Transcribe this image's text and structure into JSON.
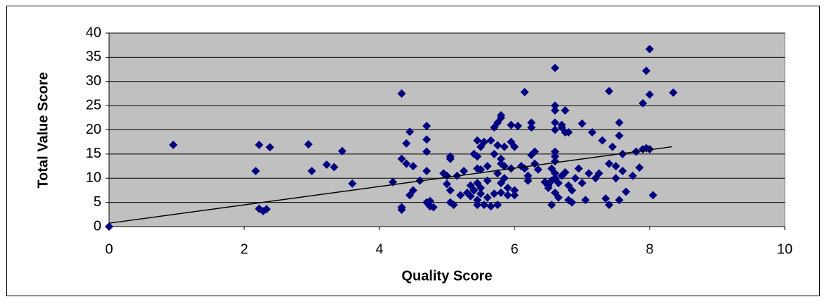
{
  "chart_data": {
    "type": "scatter",
    "x_label": "Quality Score",
    "y_label": "Total Value Score",
    "xlim": [
      0,
      10
    ],
    "xticks": [
      0,
      2,
      4,
      6,
      8,
      10
    ],
    "ylim": [
      0,
      40
    ],
    "yticks": [
      0,
      5,
      10,
      15,
      20,
      25,
      30,
      35,
      40
    ],
    "grid": true,
    "marker": "diamond",
    "color": "#000080",
    "plot_background": "#c0c0c0",
    "x": [
      0,
      0.95,
      2.17,
      2.22,
      2.22,
      2.28,
      2.33,
      2.38,
      2.95,
      3.0,
      3.22,
      3.33,
      3.45,
      3.6,
      4.2,
      4.33,
      4.33,
      4.33,
      4.33,
      4.4,
      4.4,
      4.45,
      4.45,
      4.5,
      4.5,
      4.6,
      4.7,
      4.7,
      4.7,
      4.7,
      4.7,
      4.75,
      4.75,
      4.8,
      4.95,
      5.0,
      5.0,
      5.05,
      5.05,
      5.05,
      5.05,
      5.1,
      5.15,
      5.2,
      5.25,
      5.3,
      5.35,
      5.35,
      5.4,
      5.4,
      5.45,
      5.45,
      5.45,
      5.45,
      5.45,
      5.45,
      5.5,
      5.5,
      5.5,
      5.5,
      5.55,
      5.55,
      5.6,
      5.6,
      5.6,
      5.65,
      5.65,
      5.7,
      5.7,
      5.7,
      5.75,
      5.75,
      5.75,
      5.75,
      5.8,
      5.8,
      5.8,
      5.8,
      5.8,
      5.8,
      5.85,
      5.85,
      5.85,
      5.9,
      5.9,
      5.95,
      5.95,
      5.95,
      6.0,
      6.0,
      6.0,
      6.05,
      6.1,
      6.15,
      6.15,
      6.2,
      6.2,
      6.25,
      6.25,
      6.25,
      6.3,
      6.3,
      6.35,
      6.45,
      6.5,
      6.5,
      6.55,
      6.55,
      6.55,
      6.6,
      6.6,
      6.6,
      6.6,
      6.6,
      6.6,
      6.6,
      6.6,
      6.6,
      6.6,
      6.6,
      6.65,
      6.65,
      6.7,
      6.7,
      6.7,
      6.75,
      6.75,
      6.75,
      6.8,
      6.8,
      6.8,
      6.85,
      6.85,
      6.9,
      6.95,
      7.0,
      7.0,
      7.05,
      7.1,
      7.15,
      7.2,
      7.25,
      7.3,
      7.35,
      7.4,
      7.4,
      7.4,
      7.45,
      7.5,
      7.5,
      7.55,
      7.55,
      7.55,
      7.6,
      7.6,
      7.65,
      7.75,
      7.8,
      7.85,
      7.9,
      7.9,
      7.95,
      7.95,
      8.0,
      8.0,
      8.0,
      8.05,
      8.35
    ],
    "y": [
      0,
      16.9,
      11.5,
      16.9,
      3.7,
      3.2,
      3.6,
      16.4,
      17,
      11.5,
      12.8,
      12.3,
      15.6,
      8.9,
      9.2,
      27.5,
      14,
      4,
      3.5,
      17.2,
      13,
      19.6,
      6.5,
      12.5,
      7.5,
      9.5,
      20.8,
      18,
      15.5,
      11.5,
      5,
      4.2,
      5.3,
      4,
      11,
      8.8,
      10.5,
      14.5,
      14,
      7.5,
      5,
      4.5,
      10.5,
      6.5,
      11.5,
      7,
      8.5,
      6.3,
      7.5,
      15,
      17.8,
      14.5,
      12,
      9,
      5.5,
      4.5,
      16.5,
      11.8,
      8,
      6.8,
      17.5,
      4.5,
      9.5,
      12.5,
      6,
      4.2,
      17.8,
      15,
      20.5,
      6.8,
      21.5,
      16.8,
      11,
      4.5,
      22.5,
      23,
      14,
      13,
      9,
      7,
      12.5,
      10,
      16.5,
      8,
      6.5,
      21,
      17.5,
      12,
      16.5,
      7.5,
      6.5,
      20.8,
      12.5,
      27.8,
      12,
      9.5,
      10.5,
      20.5,
      21.5,
      14.8,
      15.5,
      13,
      11.8,
      9.2,
      8.5,
      8,
      4.5,
      9.5,
      12,
      32.8,
      25,
      24,
      21.5,
      20,
      15.5,
      14.5,
      13.5,
      11,
      10,
      7,
      9,
      6,
      21,
      20.5,
      10.5,
      24,
      19.5,
      11.2,
      19.5,
      8.5,
      5.5,
      7.5,
      5,
      10,
      12,
      21.3,
      9,
      5.5,
      11,
      19.5,
      10,
      11,
      17.8,
      5.8,
      28,
      4.5,
      13,
      16.5,
      12.5,
      10,
      21.5,
      18.8,
      5.5,
      15,
      11.5,
      7.2,
      10.5,
      15.5,
      12.2,
      16,
      25.5,
      32.2,
      16.2,
      36.7,
      27.3,
      16,
      6.5,
      27.7
    ],
    "trendline": {
      "x": [
        0,
        8.33
      ],
      "y": [
        0.7,
        16.5
      ],
      "color": "#000000"
    }
  }
}
